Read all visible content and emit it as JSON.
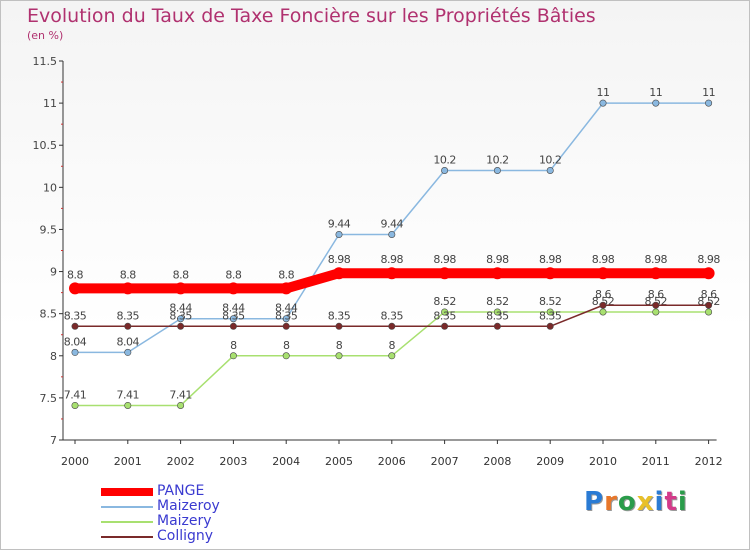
{
  "chart_data": {
    "type": "line",
    "title": "Evolution du Taux de Taxe Foncière sur les Propriétés Bâties",
    "subtitle": "(en %)",
    "xlabel": "",
    "ylabel": "",
    "ylim": [
      7,
      11.5
    ],
    "yticks": [
      "7",
      "7.5",
      "8",
      "8.5",
      "9",
      "9.5",
      "10",
      "10.5",
      "11",
      "11.5"
    ],
    "categories": [
      "2000",
      "2001",
      "2002",
      "2003",
      "2004",
      "2005",
      "2006",
      "2007",
      "2008",
      "2009",
      "2010",
      "2011",
      "2012"
    ],
    "legend_position": "bottom-left",
    "series": [
      {
        "name": "PANGE",
        "color": "#ff0000",
        "values": [
          8.8,
          8.8,
          8.8,
          8.8,
          8.8,
          8.98,
          8.98,
          8.98,
          8.98,
          8.98,
          8.98,
          8.98,
          8.98
        ],
        "labels": [
          "8.8",
          "8.8",
          "8.8",
          "8.8",
          "8.8",
          "8.98",
          "8.98",
          "8.98",
          "8.98",
          "8.98",
          "8.98",
          "8.98",
          "8.98"
        ]
      },
      {
        "name": "Maizeroy",
        "color": "#8ab8e0",
        "values": [
          8.04,
          8.04,
          8.44,
          8.44,
          8.44,
          9.44,
          9.44,
          10.2,
          10.2,
          10.2,
          11,
          11,
          11
        ],
        "labels": [
          "8.04",
          "8.04",
          "8.44",
          "8.44",
          "8.44",
          "9.44",
          "9.44",
          "10.2",
          "10.2",
          "10.2",
          "11",
          "11",
          "11"
        ]
      },
      {
        "name": "Maizery",
        "color": "#a8e070",
        "values": [
          7.41,
          7.41,
          7.41,
          8,
          8,
          8,
          8,
          8.52,
          8.52,
          8.52,
          8.52,
          8.52,
          8.52
        ],
        "labels": [
          "7.41",
          "7.41",
          "7.41",
          "8",
          "8",
          "8",
          "8",
          "8.52",
          "8.52",
          "8.52",
          "8.52",
          "8.52",
          "8.52"
        ]
      },
      {
        "name": "Colligny",
        "color": "#7a2a2a",
        "values": [
          8.35,
          8.35,
          8.35,
          8.35,
          8.35,
          8.35,
          8.35,
          8.35,
          8.35,
          8.35,
          8.6,
          8.6,
          8.6
        ],
        "labels": [
          "8.35",
          "8.35",
          "8.35",
          "8.35",
          "8.35",
          "8.35",
          "8.35",
          "8.35",
          "8.35",
          "8.35",
          "8.6",
          "8.6",
          "8.6"
        ]
      }
    ]
  },
  "logo": {
    "letters": [
      "P",
      "r",
      "o",
      "x",
      "i",
      "t",
      "i"
    ],
    "colors": [
      "#2a7bd4",
      "#e8772a",
      "#2a9c4a",
      "#e8c02a",
      "#2a7bd4",
      "#d43a8a",
      "#2a9c4a"
    ]
  }
}
